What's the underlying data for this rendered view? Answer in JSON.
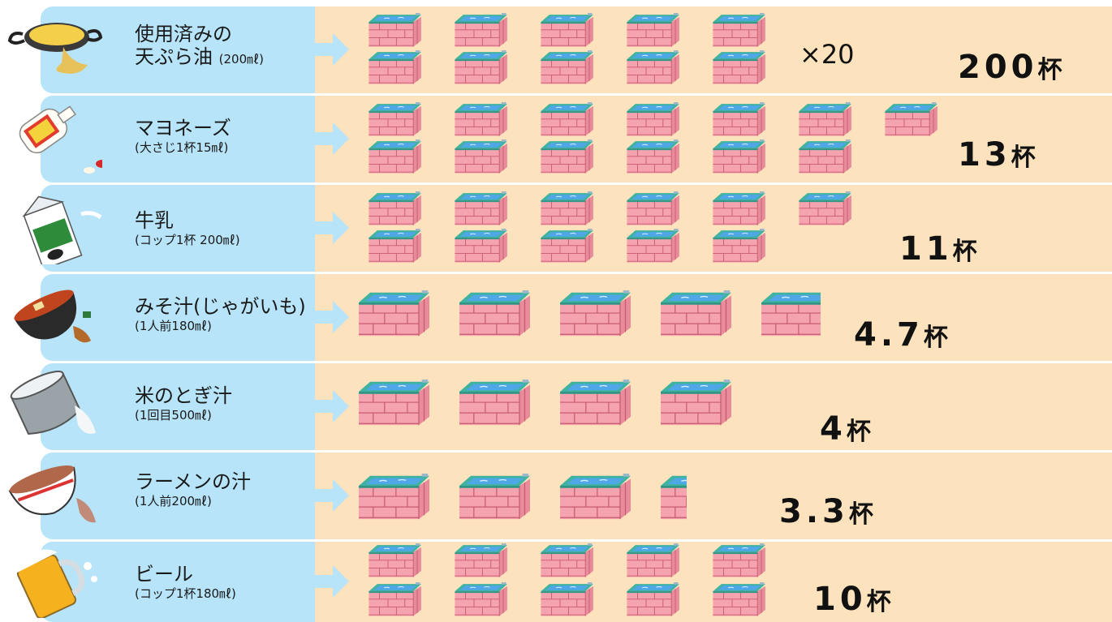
{
  "rows": [
    {
      "name": "使用済みの",
      "name2": "天ぷら油",
      "sub": "(200㎖)",
      "count": "200",
      "unit": "杯",
      "multiplier": "×20",
      "food_icon": "frying-pan-oil-icon"
    },
    {
      "name": "マヨネーズ",
      "sub": "(大さじ1杯15㎖)",
      "count": "13",
      "unit": "杯",
      "food_icon": "mayonnaise-bottle-icon"
    },
    {
      "name": "牛乳",
      "sub": "(コップ1杯 200㎖)",
      "count": "11",
      "unit": "杯",
      "food_icon": "milk-carton-icon"
    },
    {
      "name": "みそ汁(じゃがいも)",
      "sub": "(1人前180㎖)",
      "count": "4.7",
      "unit": "杯",
      "food_icon": "miso-soup-bowl-icon"
    },
    {
      "name": "米のとぎ汁",
      "sub": "(1回目500㎖)",
      "count": "4",
      "unit": "杯",
      "food_icon": "rice-pot-icon"
    },
    {
      "name": "ラーメンの汁",
      "sub": "(1人前200㎖)",
      "count": "3.3",
      "unit": "杯",
      "food_icon": "ramen-bowl-icon"
    },
    {
      "name": "ビール",
      "sub": "(コップ1杯180㎖)",
      "count": "10",
      "unit": "杯",
      "food_icon": "beer-mug-icon"
    }
  ],
  "colors": {
    "card": "#b7e4f9",
    "panel": "#fde3bd",
    "tub_wall": "#f6a3b0",
    "tub_rim": "#3fb3a0",
    "water": "#4fa7e8"
  },
  "tub_icon": "bathtub-icon",
  "arrow_icon": "arrow-right-icon"
}
